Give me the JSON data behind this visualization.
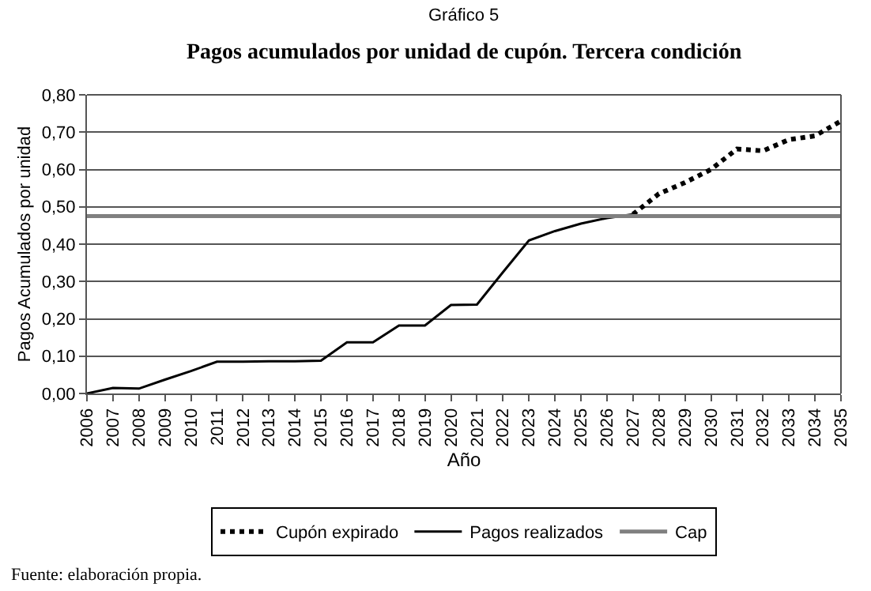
{
  "chart_data": {
    "type": "line",
    "title": "Gráfico 5",
    "subtitle": "Pagos acumulados por unidad de cupón. Tercera condición",
    "xlabel": "Año",
    "ylabel": "Pagos Acumulados por unidad",
    "x": [
      2006,
      2007,
      2008,
      2009,
      2010,
      2011,
      2012,
      2013,
      2014,
      2015,
      2016,
      2017,
      2018,
      2019,
      2020,
      2021,
      2022,
      2023,
      2024,
      2025,
      2026,
      2027,
      2028,
      2029,
      2030,
      2031,
      2032,
      2033,
      2034,
      2035
    ],
    "series": [
      {
        "name": "Cupón expirado",
        "color": "#000000",
        "line_style": "dotted",
        "values": [
          null,
          null,
          null,
          null,
          null,
          null,
          null,
          null,
          null,
          null,
          null,
          null,
          null,
          null,
          null,
          null,
          null,
          null,
          null,
          null,
          null,
          0.48,
          0.535,
          0.565,
          0.6,
          0.655,
          0.65,
          0.68,
          0.69,
          0.73
        ]
      },
      {
        "name": "Pagos realizados",
        "color": "#000000",
        "line_style": "solid",
        "values": [
          0.0,
          0.015,
          0.013,
          0.037,
          0.06,
          0.085,
          0.085,
          0.086,
          0.086,
          0.088,
          0.137,
          0.137,
          0.182,
          0.182,
          0.237,
          0.238,
          0.325,
          0.41,
          0.435,
          0.455,
          0.47,
          0.48,
          null,
          null,
          null,
          null,
          null,
          null,
          null,
          null
        ]
      },
      {
        "name": "Cap",
        "color": "#808080",
        "line_style": "solid",
        "values": [
          0.475,
          0.475,
          0.475,
          0.475,
          0.475,
          0.475,
          0.475,
          0.475,
          0.475,
          0.475,
          0.475,
          0.475,
          0.475,
          0.475,
          0.475,
          0.475,
          0.475,
          0.475,
          0.475,
          0.475,
          0.475,
          0.475,
          0.475,
          0.475,
          0.475,
          0.475,
          0.475,
          0.475,
          0.475,
          0.475
        ]
      }
    ],
    "xlim": [
      2006,
      2035
    ],
    "xticks": [
      2006,
      2007,
      2008,
      2009,
      2010,
      2011,
      2012,
      2013,
      2014,
      2015,
      2016,
      2017,
      2018,
      2019,
      2020,
      2021,
      2022,
      2023,
      2024,
      2025,
      2026,
      2027,
      2028,
      2029,
      2030,
      2031,
      2032,
      2033,
      2034,
      2035
    ],
    "ylim": [
      0,
      0.8
    ],
    "yticks": [
      {
        "value": 0,
        "label": "0,00"
      },
      {
        "value": 0.1,
        "label": "0,10"
      },
      {
        "value": 0.2,
        "label": "0,20"
      },
      {
        "value": 0.3,
        "label": "0,30"
      },
      {
        "value": 0.4,
        "label": "0,40"
      },
      {
        "value": 0.5,
        "label": "0,50"
      },
      {
        "value": 0.6,
        "label": "0,60"
      },
      {
        "value": 0.7,
        "label": "0,70"
      },
      {
        "value": 0.8,
        "label": "0,80"
      }
    ],
    "grid": "y",
    "legend": "bottom",
    "marker": "none",
    "annotations": [
      "Fuente: elaboración propia."
    ]
  }
}
